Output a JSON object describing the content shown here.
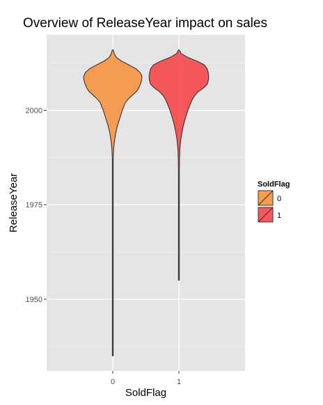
{
  "chart_data": {
    "type": "violin",
    "title": "Overview of ReleaseYear impact on sales",
    "xlabel": "SoldFlag",
    "ylabel": "ReleaseYear",
    "categories": [
      "0",
      "1"
    ],
    "ylim": [
      1931,
      2020
    ],
    "yticks": [
      1950,
      1975,
      2000
    ],
    "grid": true,
    "legend": {
      "title": "SoldFlag",
      "position": "right",
      "entries": [
        "0",
        "1"
      ]
    },
    "colors": {
      "panel": "#e5e5e5",
      "grid_major": "#ffffff",
      "grid_minor": "#f2f2f2",
      "outline": "#333333"
    },
    "series": [
      {
        "category": "0",
        "fill": "#f59440",
        "min": 1935,
        "max": 2016,
        "profile": [
          [
            2016,
            0.0
          ],
          [
            2015,
            0.05
          ],
          [
            2014,
            0.12
          ],
          [
            2013,
            0.3
          ],
          [
            2012,
            0.55
          ],
          [
            2011,
            0.78
          ],
          [
            2010,
            0.92
          ],
          [
            2009,
            0.98
          ],
          [
            2008,
            0.97
          ],
          [
            2007,
            0.93
          ],
          [
            2006,
            0.88
          ],
          [
            2005,
            0.8
          ],
          [
            2004,
            0.66
          ],
          [
            2003,
            0.52
          ],
          [
            2002,
            0.42
          ],
          [
            2000,
            0.32
          ],
          [
            1998,
            0.24
          ],
          [
            1996,
            0.16
          ],
          [
            1994,
            0.1
          ],
          [
            1992,
            0.06
          ],
          [
            1990,
            0.03
          ],
          [
            1987,
            0.012
          ],
          [
            1983,
            0.008
          ],
          [
            1978,
            0.006
          ],
          [
            1970,
            0.004
          ],
          [
            1960,
            0.004
          ],
          [
            1950,
            0.004
          ],
          [
            1940,
            0.004
          ],
          [
            1935,
            0.0
          ]
        ]
      },
      {
        "category": "1",
        "fill": "#f5484a",
        "min": 1955,
        "max": 2016,
        "profile": [
          [
            2016,
            0.0
          ],
          [
            2015,
            0.08
          ],
          [
            2014,
            0.3
          ],
          [
            2013,
            0.62
          ],
          [
            2012,
            0.86
          ],
          [
            2011,
            0.95
          ],
          [
            2010,
            0.985
          ],
          [
            2009,
            1.0
          ],
          [
            2008,
            0.99
          ],
          [
            2007,
            0.96
          ],
          [
            2006,
            0.84
          ],
          [
            2005,
            0.66
          ],
          [
            2004,
            0.54
          ],
          [
            2003,
            0.46
          ],
          [
            2002,
            0.4
          ],
          [
            2000,
            0.3
          ],
          [
            1998,
            0.22
          ],
          [
            1996,
            0.15
          ],
          [
            1994,
            0.1
          ],
          [
            1992,
            0.06
          ],
          [
            1990,
            0.035
          ],
          [
            1987,
            0.02
          ],
          [
            1983,
            0.012
          ],
          [
            1978,
            0.008
          ],
          [
            1970,
            0.006
          ],
          [
            1960,
            0.005
          ],
          [
            1955,
            0.0
          ]
        ]
      }
    ]
  }
}
